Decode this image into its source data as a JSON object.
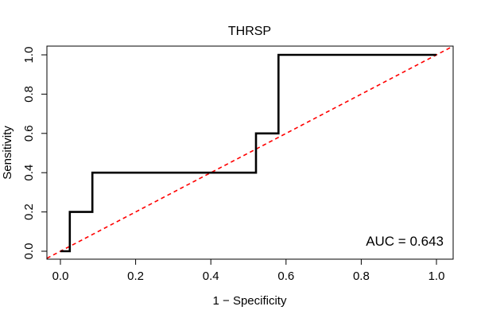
{
  "chart_data": {
    "type": "line",
    "title": "THRSP",
    "xlabel": "1 − Specificity",
    "ylabel": "Sensitivity",
    "xlim": [
      0,
      1
    ],
    "ylim": [
      0,
      1
    ],
    "xticks": [
      0.0,
      0.2,
      0.4,
      0.6,
      0.8,
      1.0
    ],
    "xtick_labels": [
      "0.0",
      "0.2",
      "0.4",
      "0.6",
      "0.8",
      "1.0"
    ],
    "yticks": [
      0.0,
      0.2,
      0.4,
      0.6,
      0.8,
      1.0
    ],
    "ytick_labels": [
      "0.0",
      "0.2",
      "0.4",
      "0.6",
      "0.8",
      "1.0"
    ],
    "grid": false,
    "series": [
      {
        "name": "ROC curve",
        "color": "#000000",
        "style": "solid",
        "x": [
          0.0,
          0.025,
          0.025,
          0.085,
          0.085,
          0.52,
          0.52,
          0.58,
          0.58,
          1.0
        ],
        "y": [
          0.0,
          0.0,
          0.2,
          0.2,
          0.4,
          0.4,
          0.6,
          0.6,
          1.0,
          1.0
        ]
      },
      {
        "name": "Chance line",
        "color": "#ff0000",
        "style": "dashed",
        "x": [
          0.0,
          1.0
        ],
        "y": [
          0.0,
          1.0
        ]
      }
    ],
    "annotations": [
      {
        "text": "AUC = 0.643",
        "position": "bottom-right"
      }
    ]
  }
}
